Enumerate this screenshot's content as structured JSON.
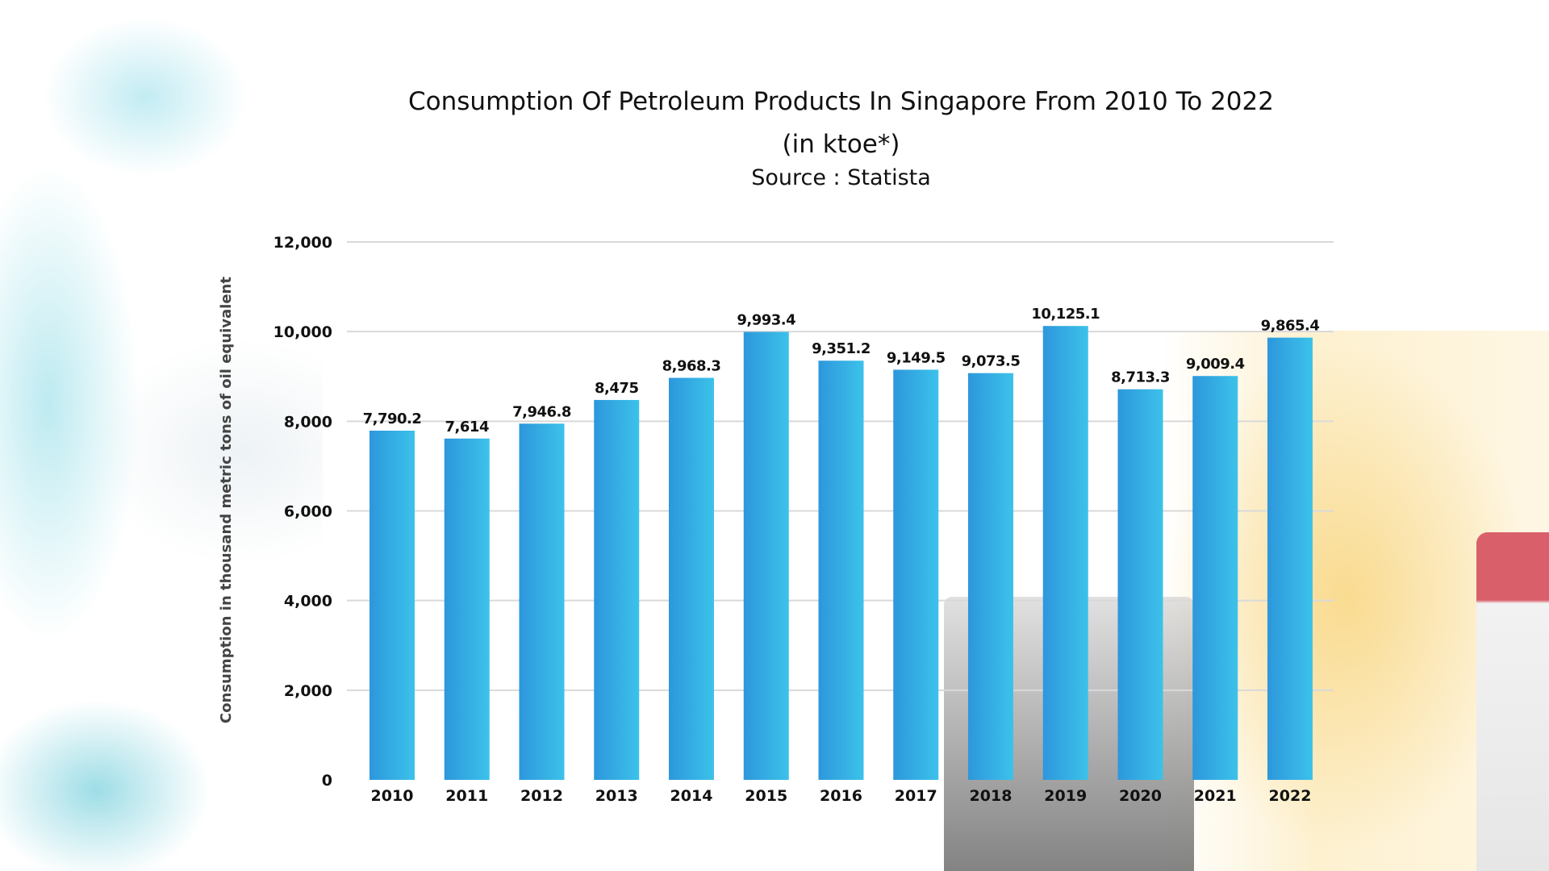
{
  "chart_data": {
    "type": "bar",
    "title": "Consumption Of Petroleum Products In Singapore From 2010 To 2022",
    "subtitle": "(in ktoe*)",
    "source": "Source : Statista",
    "xlabel": "",
    "ylabel": "Consumption in thousand metric tons of oil equivalent",
    "ylim": [
      0,
      12000
    ],
    "yticks": [
      0,
      2000,
      4000,
      6000,
      8000,
      10000,
      12000
    ],
    "ytick_labels": [
      "0",
      "2,000",
      "4,000",
      "6,000",
      "8,000",
      "10,000",
      "12,000"
    ],
    "grid": true,
    "categories": [
      "2010",
      "2011",
      "2012",
      "2013",
      "2014",
      "2015",
      "2016",
      "2017",
      "2018",
      "2019",
      "2020",
      "2021",
      "2022"
    ],
    "values": [
      7790.2,
      7614,
      7946.8,
      8475,
      8968.3,
      9993.4,
      9351.2,
      9149.5,
      9073.5,
      10125.1,
      8713.3,
      9009.4,
      9865.4
    ],
    "data_labels": [
      "7,790.2",
      "7,614",
      "7,946.8",
      "8,475",
      "8,968.3",
      "9,993.4",
      "9,351.2",
      "9,149.5",
      "9,073.5",
      "10,125.1",
      "8,713.3",
      "9,009.4",
      "9,865.4"
    ],
    "colors": {
      "bar_top": "#2f9fe0",
      "bar_bottom": "#38bce6",
      "grid": "#d9d9d9"
    }
  }
}
